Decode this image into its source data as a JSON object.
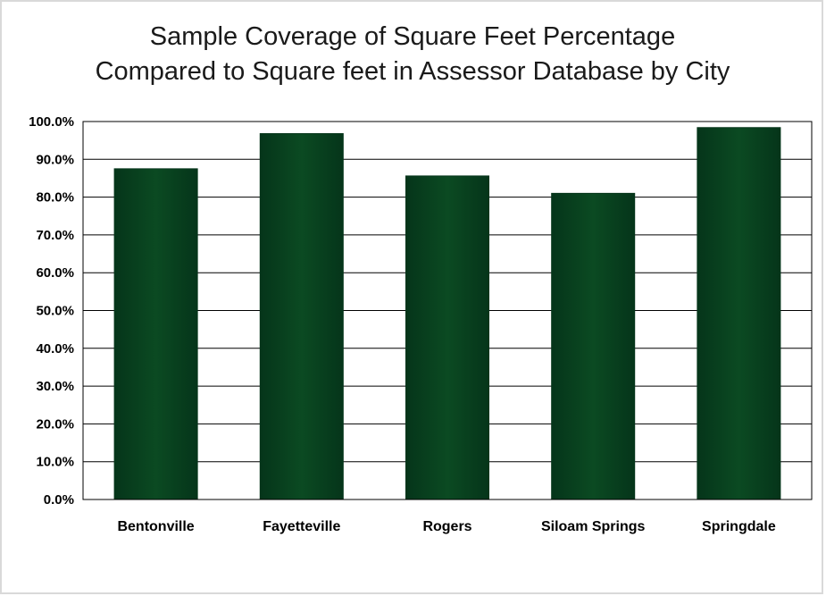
{
  "chart_data": {
    "type": "bar",
    "title": [
      "Sample Coverage of Square Feet Percentage",
      "Compared to Square feet in Assessor Database by City"
    ],
    "categories": [
      "Bentonville",
      "Fayetteville",
      "Rogers",
      "Siloam Springs",
      "Springdale"
    ],
    "values": [
      87.5,
      96.8,
      85.6,
      81.0,
      98.4
    ],
    "value_format": "percent",
    "ylim": [
      0,
      100
    ],
    "ytick_step": 10,
    "ytick_labels": [
      "0.0%",
      "10.0%",
      "20.0%",
      "30.0%",
      "40.0%",
      "50.0%",
      "60.0%",
      "70.0%",
      "80.0%",
      "90.0%",
      "100.0%"
    ],
    "xlabel": "",
    "ylabel": "",
    "grid": true,
    "legend": "none",
    "colors": {
      "bar": "#0b4a22",
      "bar_dark": "#05351a",
      "grid": "#000000",
      "frame": "#d9d9d9"
    }
  }
}
